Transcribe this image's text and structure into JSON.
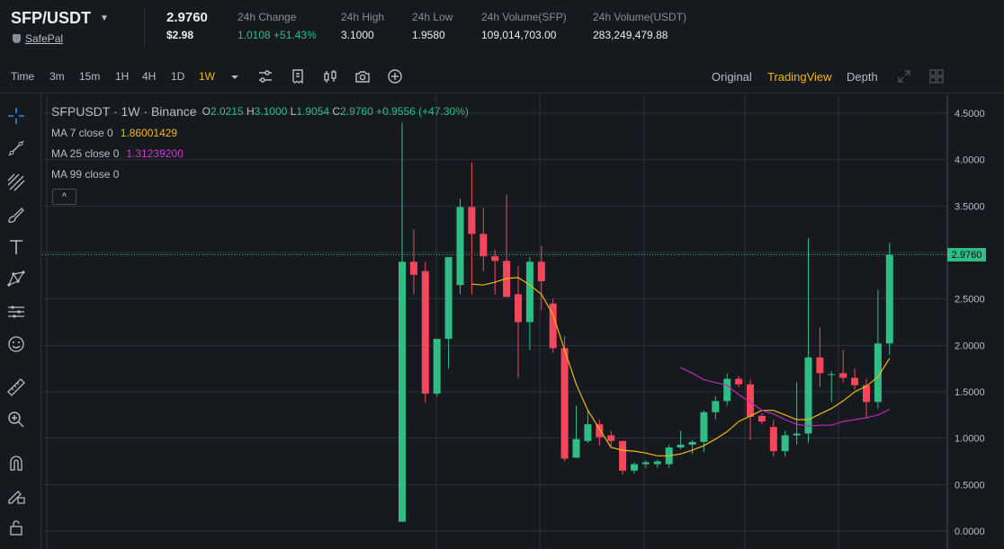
{
  "header": {
    "pair": "SFP/USDT",
    "brand": "SafePal",
    "last_price": "2.9760",
    "last_price_usd": "$2.98",
    "stats": [
      {
        "label": "24h Change",
        "value": "1.0108 +51.43%",
        "positive": true
      },
      {
        "label": "24h High",
        "value": "3.1000"
      },
      {
        "label": "24h Low",
        "value": "1.9580"
      },
      {
        "label": "24h Volume(SFP)",
        "value": "109,014,703.00"
      },
      {
        "label": "24h Volume(USDT)",
        "value": "283,249,479.88"
      }
    ]
  },
  "toolbar": {
    "intervals": [
      "Time",
      "3m",
      "15m",
      "1H",
      "4H",
      "1D",
      "1W"
    ],
    "active_interval": "1W",
    "icons": [
      "chevron-down-icon",
      "settings-sliders-icon",
      "receipt-icon",
      "candle-type-icon",
      "camera-icon",
      "plus-circle-icon"
    ],
    "views": [
      "Original",
      "TradingView",
      "Depth"
    ],
    "active_view": "TradingView",
    "right_icons": [
      "expand-icon",
      "grid-layout-icon"
    ]
  },
  "left_tools": [
    "crosshair-icon",
    "trend-line-icon",
    "fib-icon",
    "brush-icon",
    "text-icon",
    "pattern-icon",
    "measure-icon",
    "emoji-icon",
    "ruler-icon",
    "zoom-in-icon",
    "magnet-icon",
    "lock-draw-icon",
    "lock-icon"
  ],
  "legend": {
    "symbol": "SFPUSDT · 1W · Binance",
    "o_label": "O",
    "o": "2.0215",
    "h_label": "H",
    "h": "3.1000",
    "l_label": "L",
    "l": "1.9054",
    "c_label": "C",
    "c": "2.9760",
    "change": "+0.9556 (+47.30%)",
    "ma7_label": "MA 7 close 0",
    "ma7": "1.86001429",
    "ma25_label": "MA 25 close 0",
    "ma25": "1.31239200",
    "ma99_label": "MA 99 close 0",
    "collapse_glyph": "^"
  },
  "price_tag": "2.9760",
  "chart_data": {
    "type": "candlestick",
    "y_ticks": [
      "4.5000",
      "4.0000",
      "3.5000",
      "3.0000",
      "2.5000",
      "2.0000",
      "1.5000",
      "1.0000",
      "0.5000",
      "0.0000"
    ],
    "ylim": [
      0,
      4.5
    ],
    "last_price": 2.976,
    "candles": [
      {
        "o": 0.1,
        "h": 4.4,
        "l": 0.1,
        "c": 2.9
      },
      {
        "o": 2.9,
        "h": 3.25,
        "l": 2.55,
        "c": 2.76
      },
      {
        "o": 2.8,
        "h": 2.9,
        "l": 1.38,
        "c": 1.48
      },
      {
        "o": 1.48,
        "h": 2.05,
        "l": 1.45,
        "c": 2.07
      },
      {
        "o": 2.07,
        "h": 2.95,
        "l": 1.75,
        "c": 2.95
      },
      {
        "o": 2.65,
        "h": 3.58,
        "l": 2.55,
        "c": 3.49
      },
      {
        "o": 3.49,
        "h": 3.97,
        "l": 2.55,
        "c": 3.2
      },
      {
        "o": 3.2,
        "h": 3.48,
        "l": 2.8,
        "c": 2.96
      },
      {
        "o": 2.96,
        "h": 3.03,
        "l": 2.55,
        "c": 2.91
      },
      {
        "o": 2.91,
        "h": 3.62,
        "l": 2.55,
        "c": 2.52
      },
      {
        "o": 2.55,
        "h": 2.85,
        "l": 1.65,
        "c": 2.25
      },
      {
        "o": 2.25,
        "h": 2.95,
        "l": 1.95,
        "c": 2.9
      },
      {
        "o": 2.9,
        "h": 3.07,
        "l": 2.38,
        "c": 2.69
      },
      {
        "o": 2.45,
        "h": 2.5,
        "l": 1.92,
        "c": 1.97
      },
      {
        "o": 1.97,
        "h": 2.1,
        "l": 0.75,
        "c": 0.78
      },
      {
        "o": 0.79,
        "h": 1.35,
        "l": 0.79,
        "c": 0.99
      },
      {
        "o": 0.97,
        "h": 1.3,
        "l": 0.95,
        "c": 1.15
      },
      {
        "o": 1.15,
        "h": 1.2,
        "l": 0.92,
        "c": 1.01
      },
      {
        "o": 1.03,
        "h": 1.08,
        "l": 0.9,
        "c": 0.97
      },
      {
        "o": 0.97,
        "h": 0.97,
        "l": 0.61,
        "c": 0.65
      },
      {
        "o": 0.65,
        "h": 0.74,
        "l": 0.62,
        "c": 0.72
      },
      {
        "o": 0.72,
        "h": 0.76,
        "l": 0.68,
        "c": 0.74
      },
      {
        "o": 0.72,
        "h": 0.77,
        "l": 0.68,
        "c": 0.75
      },
      {
        "o": 0.72,
        "h": 0.93,
        "l": 0.68,
        "c": 0.9
      },
      {
        "o": 0.9,
        "h": 1.08,
        "l": 0.88,
        "c": 0.93
      },
      {
        "o": 0.93,
        "h": 0.98,
        "l": 0.83,
        "c": 0.96
      },
      {
        "o": 0.96,
        "h": 1.3,
        "l": 0.85,
        "c": 1.28
      },
      {
        "o": 1.28,
        "h": 1.45,
        "l": 1.2,
        "c": 1.4
      },
      {
        "o": 1.4,
        "h": 1.7,
        "l": 1.35,
        "c": 1.64
      },
      {
        "o": 1.64,
        "h": 1.67,
        "l": 1.55,
        "c": 1.58
      },
      {
        "o": 1.58,
        "h": 1.63,
        "l": 0.98,
        "c": 1.23
      },
      {
        "o": 1.24,
        "h": 1.27,
        "l": 1.15,
        "c": 1.18
      },
      {
        "o": 1.12,
        "h": 1.2,
        "l": 0.8,
        "c": 0.86
      },
      {
        "o": 0.86,
        "h": 1.08,
        "l": 0.8,
        "c": 1.03
      },
      {
        "o": 1.03,
        "h": 1.6,
        "l": 0.93,
        "c": 1.05
      },
      {
        "o": 1.05,
        "h": 3.15,
        "l": 0.95,
        "c": 1.87
      },
      {
        "o": 1.87,
        "h": 2.19,
        "l": 1.55,
        "c": 1.7
      },
      {
        "o": 1.69,
        "h": 1.72,
        "l": 1.39,
        "c": 1.69
      },
      {
        "o": 1.7,
        "h": 1.95,
        "l": 1.6,
        "c": 1.65
      },
      {
        "o": 1.65,
        "h": 1.75,
        "l": 1.52,
        "c": 1.57
      },
      {
        "o": 1.57,
        "h": 1.64,
        "l": 1.21,
        "c": 1.39
      },
      {
        "o": 1.39,
        "h": 2.6,
        "l": 1.32,
        "c": 2.02
      },
      {
        "o": 2.02,
        "h": 3.1,
        "l": 1.9,
        "c": 2.976
      }
    ],
    "ma7": [
      null,
      null,
      null,
      null,
      null,
      null,
      2.66,
      2.65,
      2.68,
      2.72,
      2.73,
      2.65,
      2.55,
      2.33,
      1.95,
      1.58,
      1.3,
      1.1,
      0.9,
      0.87,
      0.86,
      0.84,
      0.81,
      0.81,
      0.83,
      0.87,
      0.92,
      0.99,
      1.07,
      1.18,
      1.24,
      1.3,
      1.3,
      1.25,
      1.2,
      1.2,
      1.26,
      1.32,
      1.4,
      1.5,
      1.56,
      1.66,
      1.86
    ],
    "ma25": [
      null,
      null,
      null,
      null,
      null,
      null,
      null,
      null,
      null,
      null,
      null,
      null,
      null,
      null,
      null,
      null,
      null,
      null,
      null,
      null,
      null,
      null,
      null,
      null,
      1.76,
      1.7,
      1.63,
      1.6,
      1.57,
      1.47,
      1.39,
      1.3,
      1.26,
      1.2,
      1.15,
      1.13,
      1.14,
      1.14,
      1.18,
      1.2,
      1.22,
      1.25,
      1.31
    ],
    "candle_colors": {
      "up": "#2ebd85",
      "down": "#f6465d"
    },
    "ma_colors": {
      "ma7": "#f0b90b",
      "ma25": "#b92bb8"
    }
  },
  "colors": {
    "accent": "#f0b90b",
    "up": "#2ebd85",
    "down": "#f6465d",
    "bg": "#161a1e"
  }
}
